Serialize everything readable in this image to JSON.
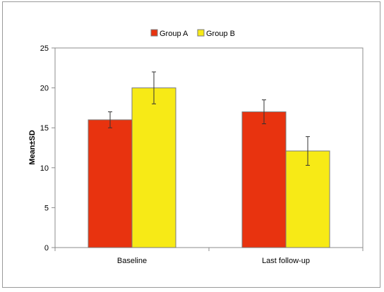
{
  "chart_data": {
    "type": "bar",
    "categories": [
      "Baseline",
      "Last follow-up"
    ],
    "series": [
      {
        "name": "Group A",
        "values": [
          16.0,
          17.0
        ],
        "sd": [
          1.0,
          1.5
        ],
        "color": "#e8330f"
      },
      {
        "name": "Group B",
        "values": [
          20.0,
          12.1
        ],
        "sd": [
          2.0,
          1.8
        ],
        "color": "#f7ea16"
      }
    ],
    "ylabel": "Mean±SD",
    "xlabel": "",
    "ylim": [
      0,
      25
    ],
    "yticks": [
      0,
      5,
      10,
      15,
      20,
      25
    ],
    "grid": false,
    "legend_position": "top",
    "error_bars": true
  }
}
